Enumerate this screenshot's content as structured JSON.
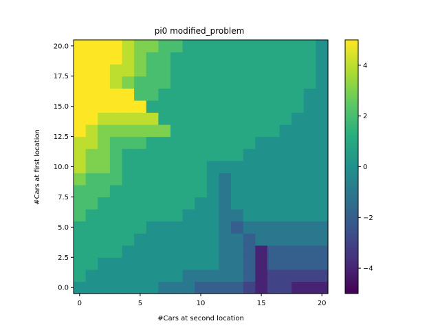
{
  "chart_data": {
    "type": "heatmap",
    "title": "pi0 modified_problem",
    "xlabel": "#Cars at second location",
    "ylabel": "#Cars at first location",
    "x": [
      0,
      1,
      2,
      3,
      4,
      5,
      6,
      7,
      8,
      9,
      10,
      11,
      12,
      13,
      14,
      15,
      16,
      17,
      18,
      19,
      20
    ],
    "y": [
      0,
      1,
      2,
      3,
      4,
      5,
      6,
      7,
      8,
      9,
      10,
      11,
      12,
      13,
      14,
      15,
      16,
      17,
      18,
      19,
      20
    ],
    "xlim": [
      -0.5,
      20.5
    ],
    "ylim": [
      -0.5,
      20.5
    ],
    "x_ticks": [
      0,
      5,
      10,
      15,
      20
    ],
    "x_tick_labels": [
      "0",
      "5",
      "10",
      "15",
      "20"
    ],
    "y_ticks": [
      0,
      2.5,
      5,
      7.5,
      10,
      12.5,
      15,
      17.5,
      20
    ],
    "y_tick_labels": [
      "0.0",
      "2.5",
      "5.0",
      "7.5",
      "10.0",
      "12.5",
      "15.0",
      "17.5",
      "20.0"
    ],
    "colorbar": {
      "colormap": "viridis",
      "vmin": -5,
      "vmax": 5,
      "ticks": [
        -4,
        -2,
        0,
        2,
        4
      ],
      "tick_labels": [
        "−4",
        "−2",
        "0",
        "2",
        "4"
      ]
    },
    "grid": false,
    "z": [
      [
        0,
        0,
        0,
        0,
        0,
        0,
        0,
        -1,
        -1,
        -1,
        -2,
        -2,
        -2,
        -2,
        -3,
        -4,
        -3,
        -3,
        -4,
        -4,
        -4
      ],
      [
        1,
        0,
        0,
        0,
        0,
        0,
        0,
        0,
        0,
        -1,
        -1,
        -1,
        -1,
        -1,
        -2,
        -4,
        -3,
        -3,
        -3,
        -3,
        -3
      ],
      [
        1,
        1,
        0,
        0,
        0,
        0,
        0,
        0,
        0,
        0,
        0,
        0,
        -1,
        -1,
        -2,
        -4,
        -2,
        -2,
        -2,
        -2,
        -2
      ],
      [
        1,
        1,
        1,
        1,
        0,
        0,
        0,
        0,
        0,
        0,
        0,
        0,
        -1,
        -1,
        -2,
        -4,
        -2,
        -2,
        -2,
        -2,
        -2
      ],
      [
        1,
        1,
        1,
        1,
        1,
        0,
        0,
        0,
        0,
        0,
        0,
        0,
        -1,
        -1,
        -2,
        -1,
        -1,
        -1,
        -1,
        -1,
        -1
      ],
      [
        1,
        1,
        1,
        1,
        1,
        1,
        0,
        0,
        0,
        0,
        0,
        0,
        -1,
        -2,
        -1,
        -1,
        -1,
        -1,
        -1,
        -1,
        -1
      ],
      [
        2,
        1,
        1,
        1,
        1,
        1,
        1,
        1,
        1,
        0,
        0,
        0,
        -1,
        -1,
        0,
        0,
        0,
        0,
        0,
        0,
        0
      ],
      [
        2,
        2,
        1,
        1,
        1,
        1,
        1,
        1,
        1,
        1,
        0,
        0,
        -1,
        0,
        0,
        0,
        0,
        0,
        0,
        0,
        0
      ],
      [
        2,
        2,
        2,
        1,
        1,
        1,
        1,
        1,
        1,
        1,
        1,
        0,
        -1,
        0,
        0,
        0,
        0,
        0,
        0,
        0,
        0
      ],
      [
        3,
        2,
        2,
        2,
        1,
        1,
        1,
        1,
        1,
        1,
        1,
        0,
        -1,
        0,
        0,
        0,
        0,
        0,
        0,
        0,
        0
      ],
      [
        4,
        3,
        3,
        2,
        1,
        1,
        1,
        1,
        1,
        1,
        1,
        0,
        0,
        0,
        0,
        0,
        0,
        0,
        0,
        0,
        0
      ],
      [
        4,
        3,
        3,
        2,
        1,
        1,
        1,
        1,
        1,
        1,
        1,
        1,
        1,
        1,
        0,
        0,
        0,
        0,
        0,
        0,
        0
      ],
      [
        4,
        4,
        3,
        2,
        2,
        2,
        1,
        1,
        1,
        1,
        1,
        1,
        1,
        1,
        1,
        0,
        0,
        0,
        0,
        0,
        0
      ],
      [
        5,
        4,
        3,
        3,
        3,
        3,
        3,
        3,
        1,
        1,
        1,
        1,
        1,
        1,
        1,
        1,
        1,
        0,
        0,
        0,
        0
      ],
      [
        5,
        5,
        4,
        4,
        4,
        4,
        4,
        1,
        1,
        1,
        1,
        1,
        1,
        1,
        1,
        1,
        1,
        1,
        0,
        0,
        0
      ],
      [
        5,
        5,
        5,
        5,
        5,
        5,
        1,
        1,
        1,
        1,
        1,
        1,
        1,
        1,
        1,
        1,
        1,
        1,
        1,
        0,
        0
      ],
      [
        5,
        5,
        5,
        5,
        5,
        2,
        2,
        1,
        1,
        1,
        1,
        1,
        1,
        1,
        1,
        1,
        1,
        1,
        1,
        0,
        0
      ],
      [
        5,
        5,
        5,
        4,
        3,
        2,
        2,
        2,
        1,
        1,
        1,
        1,
        1,
        1,
        1,
        1,
        1,
        1,
        1,
        1,
        0
      ],
      [
        5,
        5,
        5,
        4,
        4,
        3,
        2,
        2,
        1,
        1,
        1,
        1,
        1,
        1,
        1,
        1,
        1,
        1,
        1,
        1,
        0
      ],
      [
        5,
        5,
        5,
        5,
        4,
        3,
        2,
        2,
        1,
        1,
        1,
        1,
        1,
        1,
        1,
        1,
        1,
        1,
        1,
        1,
        0
      ],
      [
        5,
        5,
        5,
        5,
        4,
        3,
        3,
        2,
        2,
        1,
        1,
        1,
        1,
        1,
        1,
        1,
        1,
        1,
        1,
        1,
        0
      ]
    ]
  }
}
